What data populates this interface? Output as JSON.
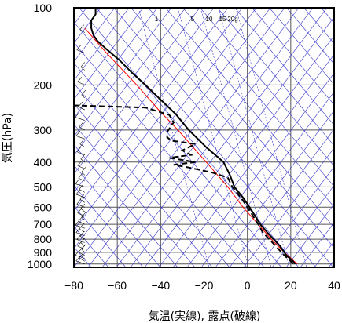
{
  "chart_data": {
    "type": "line",
    "xlabel": "気温(実線), 露点(破線)",
    "ylabel": "気圧(hPa)",
    "xlim": [
      -80,
      40
    ],
    "ylim": [
      1030,
      100
    ],
    "y_scale": "log",
    "x_ticks": [
      {
        "value": -80,
        "label": "−80"
      },
      {
        "value": -60,
        "label": "−60"
      },
      {
        "value": -40,
        "label": "−40"
      },
      {
        "value": -20,
        "label": "−20"
      },
      {
        "value": 0,
        "label": "0"
      },
      {
        "value": 20,
        "label": "20"
      },
      {
        "value": 40,
        "label": "40"
      }
    ],
    "y_ticks": [
      {
        "value": 100,
        "label": "100"
      },
      {
        "value": 200,
        "label": "200"
      },
      {
        "value": 300,
        "label": "300"
      },
      {
        "value": 400,
        "label": "400"
      },
      {
        "value": 500,
        "label": "500"
      },
      {
        "value": 600,
        "label": "600"
      },
      {
        "value": 700,
        "label": "700"
      },
      {
        "value": 800,
        "label": "800"
      },
      {
        "value": 900,
        "label": "900"
      },
      {
        "value": 1000,
        "label": "1000"
      }
    ],
    "mixing_ratio_labels": [
      {
        "label": "1",
        "value": 1
      },
      {
        "label": "5",
        "value": 5
      },
      {
        "label": "10",
        "value": 10
      },
      {
        "label": "15",
        "value": 15
      },
      {
        "label": "20g",
        "value": 20
      }
    ],
    "grid": true,
    "colors": {
      "temperature": "#000000",
      "dewpoint": "#000000",
      "parcel": "#ff0000",
      "isopleths": "#3333cc",
      "grid": "#555555"
    },
    "temperature": [
      {
        "p": 1000,
        "t": 22
      },
      {
        "p": 975,
        "t": 21
      },
      {
        "p": 925,
        "t": 18
      },
      {
        "p": 850,
        "t": 15
      },
      {
        "p": 750,
        "t": 9
      },
      {
        "p": 700,
        "t": 6
      },
      {
        "p": 600,
        "t": 1
      },
      {
        "p": 550,
        "t": -2
      },
      {
        "p": 500,
        "t": -6
      },
      {
        "p": 450,
        "t": -8
      },
      {
        "p": 400,
        "t": -11
      },
      {
        "p": 350,
        "t": -19
      },
      {
        "p": 300,
        "t": -27
      },
      {
        "p": 260,
        "t": -33
      },
      {
        "p": 220,
        "t": -42
      },
      {
        "p": 200,
        "t": -47
      },
      {
        "p": 180,
        "t": -53
      },
      {
        "p": 160,
        "t": -59
      },
      {
        "p": 145,
        "t": -65
      },
      {
        "p": 135,
        "t": -69
      },
      {
        "p": 128,
        "t": -71
      },
      {
        "p": 120,
        "t": -72
      },
      {
        "p": 112,
        "t": -72
      },
      {
        "p": 106,
        "t": -70
      },
      {
        "p": 100,
        "t": -70
      }
    ],
    "dewpoint": [
      {
        "p": 1000,
        "t": 21
      },
      {
        "p": 975,
        "t": 20
      },
      {
        "p": 925,
        "t": 17
      },
      {
        "p": 850,
        "t": 13
      },
      {
        "p": 750,
        "t": 7
      },
      {
        "p": 700,
        "t": 5
      },
      {
        "p": 600,
        "t": 0
      },
      {
        "p": 550,
        "t": -3
      },
      {
        "p": 500,
        "t": -7
      },
      {
        "p": 460,
        "t": -9
      },
      {
        "p": 440,
        "t": -16
      },
      {
        "p": 420,
        "t": -27
      },
      {
        "p": 410,
        "t": -34
      },
      {
        "p": 400,
        "t": -24
      },
      {
        "p": 385,
        "t": -36
      },
      {
        "p": 375,
        "t": -26
      },
      {
        "p": 360,
        "t": -30
      },
      {
        "p": 340,
        "t": -24
      },
      {
        "p": 330,
        "t": -35
      },
      {
        "p": 320,
        "t": -37
      },
      {
        "p": 305,
        "t": -37
      },
      {
        "p": 280,
        "t": -34
      },
      {
        "p": 262,
        "t": -36
      },
      {
        "p": 245,
        "t": -47
      },
      {
        "p": 240,
        "t": -82
      }
    ],
    "parcel": [
      {
        "p": 1000,
        "t": 23
      },
      {
        "p": 900,
        "t": 17
      },
      {
        "p": 800,
        "t": 11
      },
      {
        "p": 700,
        "t": 5
      },
      {
        "p": 600,
        "t": -2
      },
      {
        "p": 500,
        "t": -9
      },
      {
        "p": 400,
        "t": -19
      },
      {
        "p": 300,
        "t": -32
      },
      {
        "p": 250,
        "t": -41
      },
      {
        "p": 200,
        "t": -51
      },
      {
        "p": 150,
        "t": -65
      },
      {
        "p": 120,
        "t": -75
      }
    ],
    "wind_barbs": "Wind barbs along left edge at each pressure level"
  }
}
